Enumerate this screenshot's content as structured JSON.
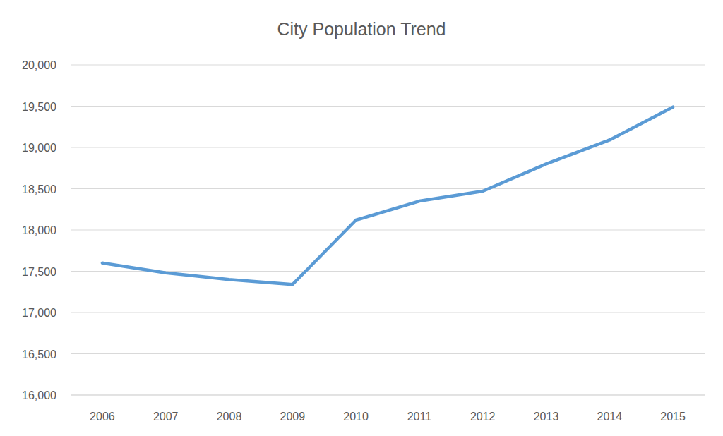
{
  "chart_data": {
    "type": "line",
    "title": "City Population Trend",
    "categories": [
      "2006",
      "2007",
      "2008",
      "2009",
      "2010",
      "2011",
      "2012",
      "2013",
      "2014",
      "2015"
    ],
    "values": [
      17600,
      17480,
      17400,
      17340,
      18120,
      18350,
      18470,
      18800,
      19090,
      19490
    ],
    "color": "#5b9bd5",
    "ylim": [
      16000,
      20000
    ],
    "yticks": [
      {
        "value": 16000,
        "label": "16,000"
      },
      {
        "value": 16500,
        "label": "16,500"
      },
      {
        "value": 17000,
        "label": "17,000"
      },
      {
        "value": 17500,
        "label": "17,500"
      },
      {
        "value": 18000,
        "label": "18,000"
      },
      {
        "value": 18500,
        "label": "18,500"
      },
      {
        "value": 19000,
        "label": "19,000"
      },
      {
        "value": 19500,
        "label": "19,500"
      },
      {
        "value": 20000,
        "label": "20,000"
      }
    ],
    "grid": true
  }
}
